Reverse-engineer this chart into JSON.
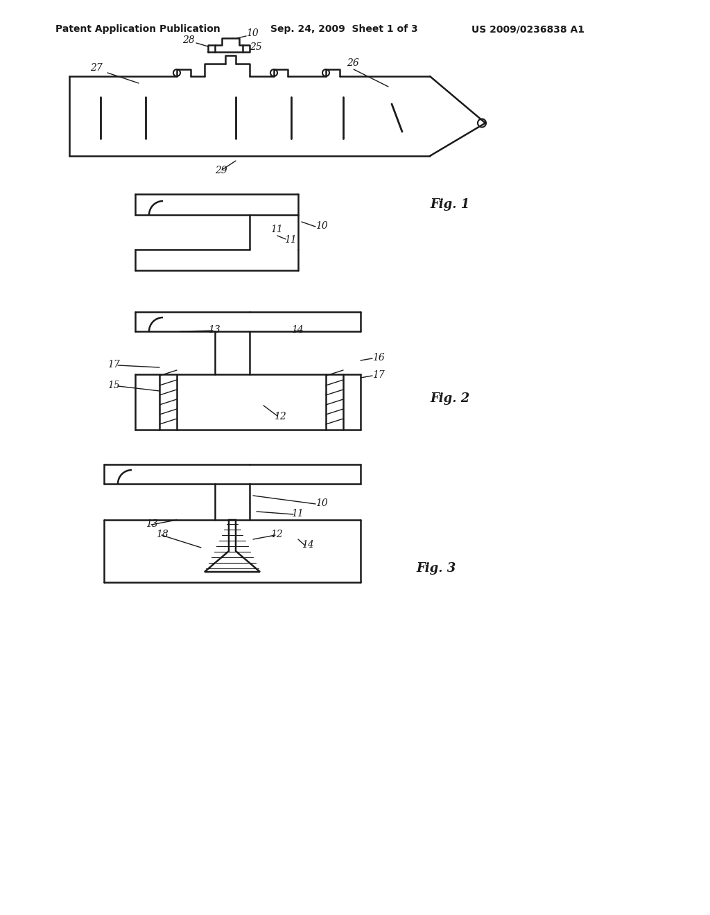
{
  "bg_color": "#ffffff",
  "line_color": "#1a1a1a",
  "header_left": "Patent Application Publication",
  "header_mid": "Sep. 24, 2009  Sheet 1 of 3",
  "header_right": "US 2009/0236838 A1",
  "fig_label_1": "Fig. 1",
  "fig_label_2": "Fig. 2",
  "fig_label_3": "Fig. 3"
}
